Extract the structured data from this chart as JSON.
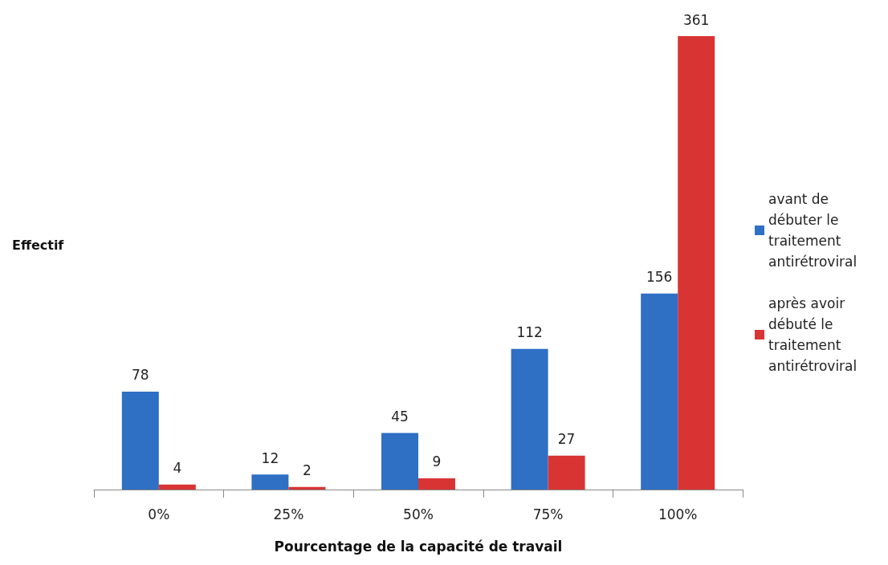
{
  "chart_data": {
    "type": "bar",
    "xlabel": "Pourcentage de la capacité de travail",
    "ylabel": "Effectif",
    "categories": [
      "0%",
      "25%",
      "50%",
      "75%",
      "100%"
    ],
    "series": [
      {
        "name": "avant de débuter le traitement antirétroviral",
        "color": "#2f6fc4",
        "values": [
          78,
          12,
          45,
          112,
          156
        ]
      },
      {
        "name": "après avoir débuté le traitement antirétroviral",
        "color": "#d93434",
        "values": [
          4,
          2,
          9,
          27,
          361
        ]
      }
    ],
    "data_labels": true,
    "legend": "right"
  }
}
